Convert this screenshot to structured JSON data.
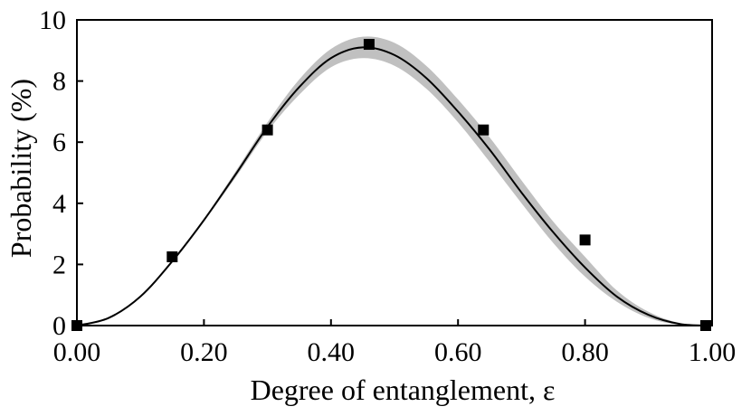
{
  "chart_data": {
    "type": "scatter",
    "xlabel": "Degree of entanglement, ε",
    "ylabel": "Probability (%)",
    "xlim": [
      0,
      1
    ],
    "ylim": [
      0,
      10
    ],
    "x_ticks": [
      0,
      0.2,
      0.4,
      0.6,
      0.8,
      1.0
    ],
    "x_tick_labels": [
      "0.00",
      "0.20",
      "0.40",
      "0.60",
      "0.80",
      "1.00"
    ],
    "y_ticks": [
      0,
      2,
      4,
      6,
      8,
      10
    ],
    "y_tick_labels": [
      "0",
      "2",
      "4",
      "6",
      "8",
      "10"
    ],
    "grid": false,
    "series": [
      {
        "marker": "square",
        "color": "#000000",
        "x": [
          0.0,
          0.15,
          0.3,
          0.46,
          0.64,
          0.8,
          0.99
        ],
        "y": [
          0.0,
          2.25,
          6.4,
          9.2,
          6.4,
          2.8,
          0.0
        ]
      },
      {
        "style": "line",
        "color": "#000000",
        "x": [
          0.0,
          0.05,
          0.1,
          0.15,
          0.2,
          0.25,
          0.3,
          0.35,
          0.4,
          0.45,
          0.5,
          0.55,
          0.6,
          0.65,
          0.7,
          0.75,
          0.8,
          0.85,
          0.9,
          0.95,
          1.0
        ],
        "y": [
          0.0,
          0.25,
          0.95,
          2.1,
          3.45,
          4.95,
          6.5,
          7.8,
          8.75,
          9.1,
          8.85,
          8.1,
          7.0,
          5.75,
          4.35,
          3.05,
          1.9,
          0.95,
          0.35,
          0.05,
          0.0
        ]
      },
      {
        "style": "band",
        "color": "#c0c0c0",
        "x": [
          0.0,
          0.05,
          0.1,
          0.15,
          0.2,
          0.25,
          0.3,
          0.35,
          0.4,
          0.45,
          0.5,
          0.55,
          0.6,
          0.65,
          0.7,
          0.75,
          0.8,
          0.85,
          0.9,
          0.95,
          1.0
        ],
        "y_low": [
          0.0,
          0.24,
          0.93,
          2.05,
          3.4,
          4.85,
          6.35,
          7.55,
          8.45,
          8.75,
          8.5,
          7.75,
          6.65,
          5.35,
          4.0,
          2.7,
          1.6,
          0.78,
          0.25,
          0.02,
          0.0
        ],
        "y_high": [
          0.0,
          0.26,
          0.97,
          2.15,
          3.5,
          5.05,
          6.65,
          8.05,
          9.05,
          9.45,
          9.25,
          8.5,
          7.4,
          6.15,
          4.75,
          3.4,
          2.25,
          1.15,
          0.45,
          0.08,
          0.0
        ]
      }
    ]
  }
}
